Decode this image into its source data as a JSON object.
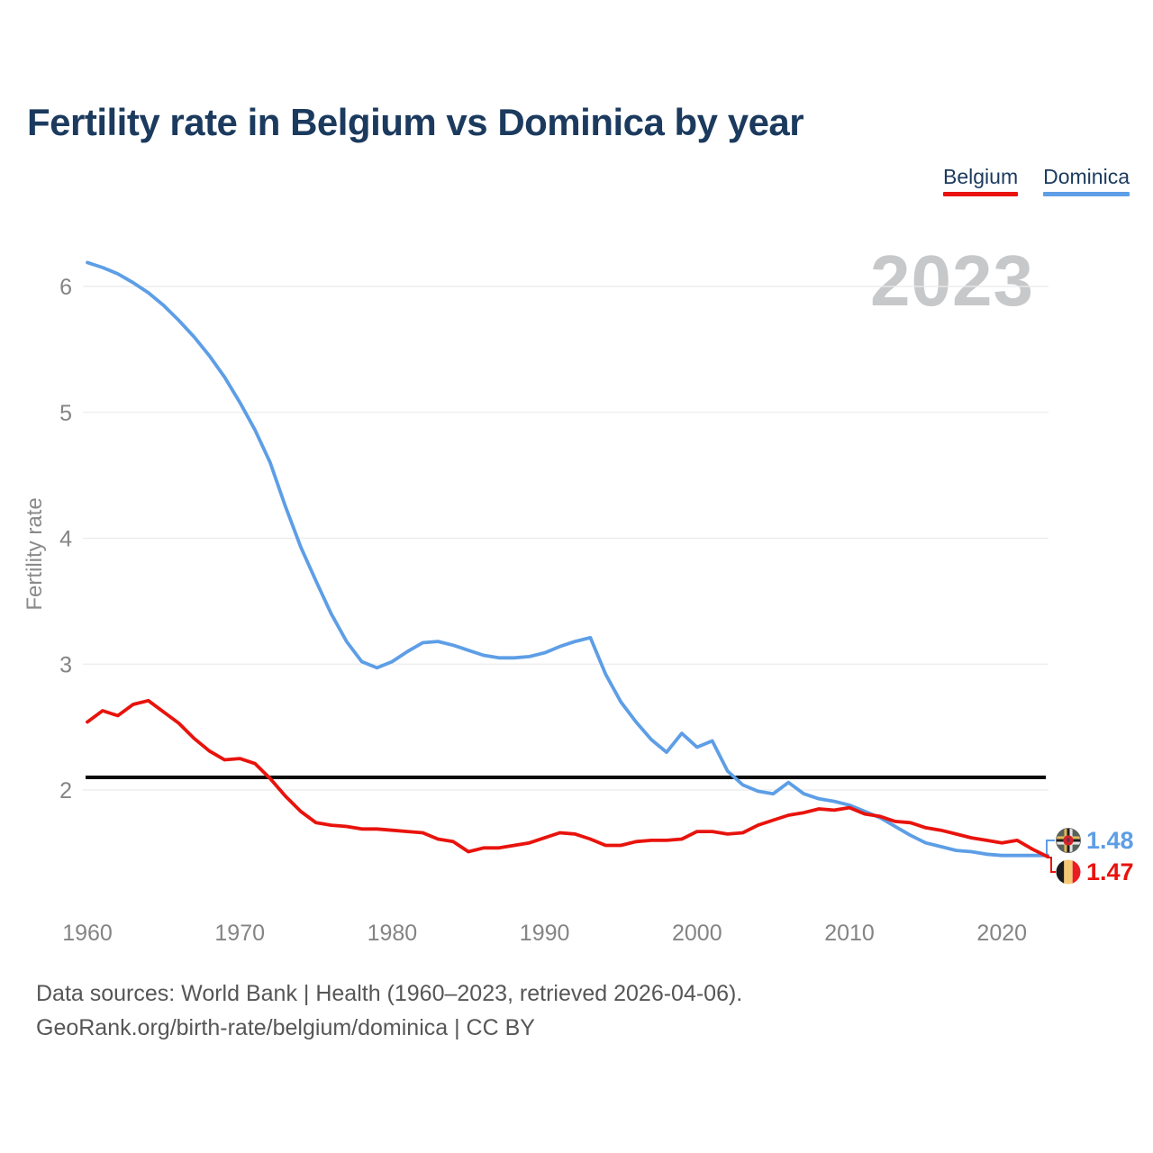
{
  "header": {
    "title": "Fertility rate in Belgium vs Dominica by year"
  },
  "legend": {
    "items": [
      {
        "label": "Belgium",
        "color": "#e8130c"
      },
      {
        "label": "Dominica",
        "color": "#5d9ee6"
      }
    ]
  },
  "watermark": "2023",
  "footer": {
    "line1": "Data sources: World Bank | Health (1960–2023, retrieved 2026-04-06).",
    "line2": "GeoRank.org/birth-rate/belgium/dominica | CC BY"
  },
  "chart_data": {
    "type": "line",
    "title": "Fertility rate in Belgium vs Dominica by year",
    "xlabel": "",
    "ylabel": "Fertility rate",
    "x_ticks": [
      1960,
      1970,
      1980,
      1990,
      2000,
      2010,
      2020
    ],
    "y_ticks": [
      2,
      3,
      4,
      5,
      6
    ],
    "xlim": [
      1960,
      2023
    ],
    "ylim": [
      1.0,
      6.3
    ],
    "grid": "horizontal",
    "legend_position": "top-right",
    "reference_line": {
      "value": 2.1,
      "color": "#0a0a0a"
    },
    "years": [
      1960,
      1961,
      1962,
      1963,
      1964,
      1965,
      1966,
      1967,
      1968,
      1969,
      1970,
      1971,
      1972,
      1973,
      1974,
      1975,
      1976,
      1977,
      1978,
      1979,
      1980,
      1981,
      1982,
      1983,
      1984,
      1985,
      1986,
      1987,
      1988,
      1989,
      1990,
      1991,
      1992,
      1993,
      1994,
      1995,
      1996,
      1997,
      1998,
      1999,
      2000,
      2001,
      2002,
      2003,
      2004,
      2005,
      2006,
      2007,
      2008,
      2009,
      2010,
      2011,
      2012,
      2013,
      2014,
      2015,
      2016,
      2017,
      2018,
      2019,
      2020,
      2021,
      2022,
      2023
    ],
    "series": [
      {
        "name": "Belgium",
        "color": "#e8130c",
        "end_label": "1.47",
        "values": [
          2.54,
          2.63,
          2.59,
          2.68,
          2.71,
          2.62,
          2.53,
          2.41,
          2.31,
          2.24,
          2.25,
          2.21,
          2.09,
          1.95,
          1.83,
          1.74,
          1.72,
          1.71,
          1.69,
          1.69,
          1.68,
          1.67,
          1.66,
          1.61,
          1.59,
          1.51,
          1.54,
          1.54,
          1.56,
          1.58,
          1.62,
          1.66,
          1.65,
          1.61,
          1.56,
          1.56,
          1.59,
          1.6,
          1.6,
          1.61,
          1.67,
          1.67,
          1.65,
          1.66,
          1.72,
          1.76,
          1.8,
          1.82,
          1.85,
          1.84,
          1.86,
          1.81,
          1.79,
          1.75,
          1.74,
          1.7,
          1.68,
          1.65,
          1.62,
          1.6,
          1.58,
          1.6,
          1.53,
          1.47
        ]
      },
      {
        "name": "Dominica",
        "color": "#5d9ee6",
        "end_label": "1.48",
        "values": [
          6.19,
          6.15,
          6.1,
          6.03,
          5.95,
          5.85,
          5.73,
          5.6,
          5.45,
          5.28,
          5.08,
          4.86,
          4.6,
          4.25,
          3.93,
          3.66,
          3.4,
          3.18,
          3.02,
          2.97,
          3.02,
          3.1,
          3.17,
          3.18,
          3.15,
          3.11,
          3.07,
          3.05,
          3.05,
          3.06,
          3.09,
          3.14,
          3.18,
          3.21,
          2.92,
          2.7,
          2.54,
          2.4,
          2.3,
          2.45,
          2.34,
          2.39,
          2.15,
          2.04,
          1.99,
          1.97,
          2.06,
          1.97,
          1.93,
          1.91,
          1.88,
          1.83,
          1.78,
          1.71,
          1.64,
          1.58,
          1.55,
          1.52,
          1.51,
          1.49,
          1.48,
          1.48,
          1.48,
          1.48
        ]
      }
    ]
  }
}
